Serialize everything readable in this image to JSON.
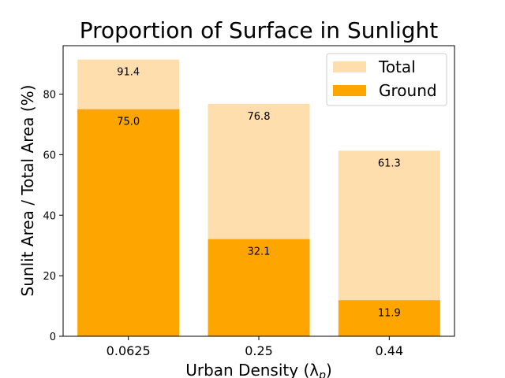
{
  "chart_data": {
    "type": "bar",
    "title": "Proportion of Surface in Sunlight",
    "xlabel": "Urban Density (λ",
    "xlabel_sub": "p",
    "xlabel_suffix": ")",
    "ylabel": "Sunlit Area / Total Area (%)",
    "categories": [
      "0.0625",
      "0.25",
      "0.44"
    ],
    "series": [
      {
        "name": "Total",
        "values": [
          91.4,
          76.8,
          61.3
        ],
        "labels": [
          "91.4",
          "76.8",
          "61.3"
        ],
        "color": "#ffdead"
      },
      {
        "name": "Ground",
        "values": [
          75.0,
          32.1,
          11.9
        ],
        "labels": [
          "75.0",
          "32.1",
          "11.9"
        ],
        "color": "#ffa500"
      }
    ],
    "ylim": [
      0,
      96
    ],
    "yticks": [
      0,
      20,
      40,
      60,
      80
    ],
    "grid": false,
    "legend_position": "top-right"
  }
}
